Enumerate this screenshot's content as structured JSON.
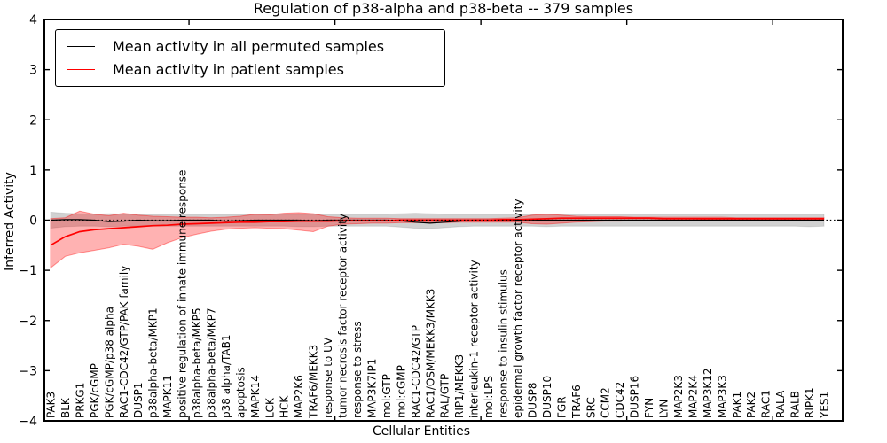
{
  "chart_data": {
    "type": "line",
    "title": "Regulation of p38-alpha and p38-beta -- 379 samples",
    "xlabel": "Cellular Entities",
    "ylabel": "Inferred Activity",
    "ylim": [
      -4,
      4
    ],
    "yticks": [
      4,
      3,
      2,
      1,
      0,
      -1,
      -2,
      -3,
      -4
    ],
    "grid": false,
    "zero_line_style": "dotted",
    "legend_position": "upper left",
    "legend": [
      "Mean activity in all permuted samples",
      "Mean activity in patient samples"
    ],
    "colors": {
      "permuted_line": "#000000",
      "patient_line": "#ff0000",
      "permuted_band": "rgba(0,0,0,0.18)",
      "patient_band": "rgba(255,0,0,0.30)",
      "patient_band_edge": "rgba(255,0,0,0.40)",
      "frame": "#000000"
    },
    "categories": [
      "PAK3",
      "BLK",
      "PRKG1",
      "PGK/cGMP",
      "PGK/cGMP/p38 alpha",
      "RAC1-CDC42/GTP/PAK family",
      "DUSP1",
      "p38alpha-beta/MKP1",
      "MAPK11",
      "positive regulation of innate immune response",
      "p38alpha-beta/MKP5",
      "p38alpha-beta/MKP7",
      "p38 alpha/TAB1",
      "apoptosis",
      "MAPK14",
      "LCK",
      "HCK",
      "MAP2K6",
      "TRAF6/MEKK3",
      "response to UV",
      "tumor necrosis factor receptor activity",
      "response to stress",
      "MAP3K7IP1",
      "mol:GTP",
      "mol:cGMP",
      "RAC1-CDC42/GTP",
      "RAC1/OSM/MEKK3/MKK3",
      "RAL/GTP",
      "RIP1/MEKK3",
      "interleukin-1 receptor activity",
      "mol:LPS",
      "response to insulin stimulus",
      "epidermal growth factor receptor activity",
      "DUSP8",
      "DUSP10",
      "FGR",
      "TRAF6",
      "SRC",
      "CCM2",
      "CDC42",
      "DUSP16",
      "FYN",
      "LYN",
      "MAP2K3",
      "MAP2K4",
      "MAP3K12",
      "MAP3K3",
      "PAK1",
      "PAK2",
      "RAC1",
      "RALA",
      "RALB",
      "RIPK1",
      "YES1"
    ],
    "series": [
      {
        "name": "Mean activity in all permuted samples",
        "color": "#000000",
        "values": [
          0.0,
          0.01,
          0.01,
          0.0,
          -0.03,
          -0.02,
          0.0,
          -0.01,
          -0.01,
          0.0,
          0.0,
          0.0,
          -0.02,
          -0.01,
          0.0,
          0.0,
          0.0,
          0.0,
          -0.01,
          0.0,
          0.0,
          0.0,
          0.0,
          0.0,
          -0.01,
          -0.04,
          -0.06,
          -0.04,
          -0.02,
          0.0,
          0.0,
          0.0,
          0.0,
          0.0,
          0.0,
          0.0,
          0.0,
          0.0,
          0.0,
          0.0,
          0.0,
          0.0,
          0.0,
          0.0,
          0.0,
          0.0,
          0.0,
          0.0,
          0.0,
          0.0,
          0.0,
          0.0,
          0.0,
          0.0
        ]
      },
      {
        "name": "Mean activity in patient samples",
        "color": "#ff0000",
        "values": [
          -0.5,
          -0.33,
          -0.23,
          -0.19,
          -0.17,
          -0.15,
          -0.13,
          -0.11,
          -0.1,
          -0.08,
          -0.07,
          -0.06,
          -0.05,
          -0.04,
          -0.04,
          -0.03,
          -0.03,
          -0.02,
          -0.02,
          -0.02,
          -0.01,
          -0.01,
          -0.01,
          -0.01,
          0.0,
          0.0,
          0.0,
          0.0,
          0.0,
          0.0,
          0.0,
          0.01,
          0.01,
          0.02,
          0.03,
          0.04,
          0.04,
          0.04,
          0.04,
          0.04,
          0.04,
          0.04,
          0.03,
          0.03,
          0.03,
          0.03,
          0.03,
          0.03,
          0.03,
          0.03,
          0.03,
          0.03,
          0.03,
          0.03
        ]
      }
    ],
    "bands": [
      {
        "name": "permuted-samples-range",
        "upper": [
          0.16,
          0.14,
          0.13,
          0.12,
          0.13,
          0.12,
          0.12,
          0.12,
          0.12,
          0.12,
          0.12,
          0.12,
          0.12,
          0.12,
          0.12,
          0.12,
          0.12,
          0.12,
          0.12,
          0.12,
          0.12,
          0.12,
          0.12,
          0.12,
          0.13,
          0.14,
          0.13,
          0.12,
          0.12,
          0.12,
          0.12,
          0.12,
          0.12,
          0.12,
          0.12,
          0.12,
          0.12,
          0.12,
          0.12,
          0.12,
          0.12,
          0.12,
          0.12,
          0.12,
          0.12,
          0.12,
          0.12,
          0.12,
          0.12,
          0.12,
          0.12,
          0.12,
          0.12,
          0.12
        ],
        "lower": [
          -0.16,
          -0.13,
          -0.12,
          -0.12,
          -0.13,
          -0.12,
          -0.12,
          -0.12,
          -0.12,
          -0.12,
          -0.12,
          -0.12,
          -0.12,
          -0.12,
          -0.12,
          -0.12,
          -0.12,
          -0.13,
          -0.13,
          -0.12,
          -0.12,
          -0.12,
          -0.12,
          -0.12,
          -0.14,
          -0.16,
          -0.17,
          -0.15,
          -0.13,
          -0.12,
          -0.12,
          -0.12,
          -0.12,
          -0.12,
          -0.13,
          -0.12,
          -0.12,
          -0.12,
          -0.12,
          -0.12,
          -0.12,
          -0.12,
          -0.12,
          -0.12,
          -0.12,
          -0.12,
          -0.12,
          -0.12,
          -0.12,
          -0.12,
          -0.12,
          -0.12,
          -0.13,
          -0.12
        ]
      },
      {
        "name": "patient-samples-range",
        "upper": [
          0.03,
          0.05,
          0.18,
          0.12,
          0.09,
          0.14,
          0.1,
          0.08,
          0.07,
          0.06,
          0.06,
          0.05,
          0.06,
          0.08,
          0.12,
          0.11,
          0.14,
          0.15,
          0.13,
          0.07,
          0.05,
          0.04,
          0.04,
          0.04,
          0.03,
          0.03,
          0.03,
          0.03,
          0.03,
          0.03,
          0.03,
          0.04,
          0.05,
          0.1,
          0.12,
          0.1,
          0.08,
          0.07,
          0.07,
          0.07,
          0.06,
          0.06,
          0.06,
          0.06,
          0.06,
          0.06,
          0.06,
          0.05,
          0.05,
          0.05,
          0.05,
          0.05,
          0.05,
          0.05
        ],
        "lower": [
          -0.95,
          -0.72,
          -0.65,
          -0.6,
          -0.55,
          -0.48,
          -0.52,
          -0.58,
          -0.45,
          -0.35,
          -0.28,
          -0.22,
          -0.18,
          -0.16,
          -0.15,
          -0.16,
          -0.17,
          -0.2,
          -0.23,
          -0.12,
          -0.08,
          -0.07,
          -0.06,
          -0.06,
          -0.05,
          -0.05,
          -0.05,
          -0.05,
          -0.04,
          -0.04,
          -0.04,
          -0.04,
          -0.04,
          -0.07,
          -0.08,
          -0.06,
          -0.04,
          -0.03,
          -0.02,
          -0.02,
          -0.01,
          0.0,
          0.0,
          0.0,
          0.0,
          0.01,
          0.01,
          0.01,
          0.01,
          0.01,
          0.01,
          0.01,
          0.01,
          0.01
        ]
      }
    ]
  }
}
